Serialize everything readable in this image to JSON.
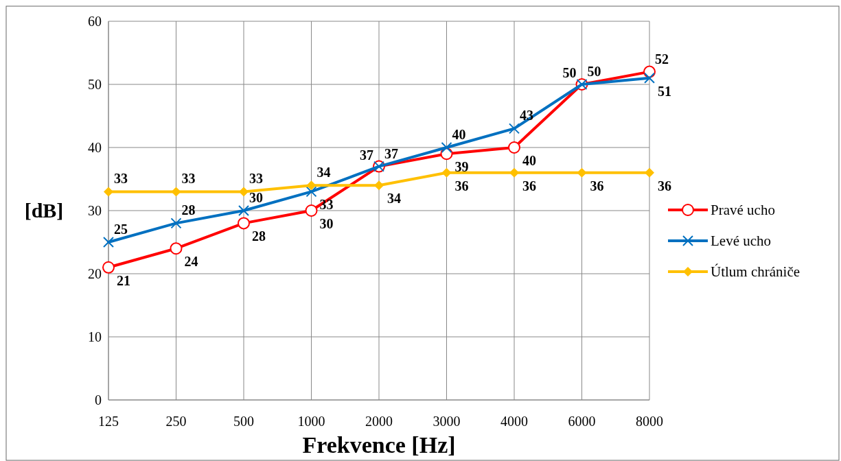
{
  "chart_data": {
    "type": "line",
    "xlabel": "Frekvence [Hz]",
    "ylabel": "[dB]",
    "categories": [
      "125",
      "250",
      "500",
      "1000",
      "2000",
      "3000",
      "4000",
      "6000",
      "8000"
    ],
    "ylim": [
      0,
      60
    ],
    "yticks": [
      0,
      10,
      20,
      30,
      40,
      50,
      60
    ],
    "grid": true,
    "legend": "right",
    "data_labels": true,
    "series": [
      {
        "name": "Pravé ucho",
        "color": "#ff0000",
        "marker": "circle",
        "values": [
          21,
          24,
          28,
          30,
          37,
          39,
          40,
          50,
          52
        ]
      },
      {
        "name": "Levé ucho",
        "color": "#0070c0",
        "marker": "cross",
        "values": [
          25,
          28,
          30,
          33,
          37,
          40,
          43,
          50,
          51
        ]
      },
      {
        "name": "Útlum chrániče",
        "color": "#ffc000",
        "marker": "diamond",
        "values": [
          33,
          33,
          33,
          34,
          34,
          36,
          36,
          36,
          36
        ]
      }
    ]
  }
}
